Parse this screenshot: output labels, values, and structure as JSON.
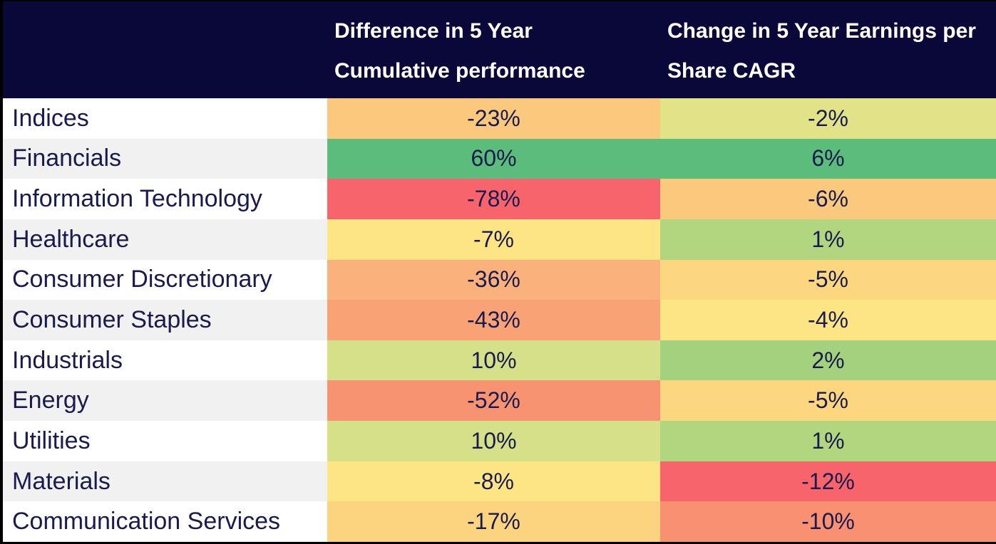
{
  "colors": {
    "header_bg": "#0A0838",
    "header_text": "#FFFFFF",
    "body_text": "#191B4E",
    "row_bg": "#FFFFFF",
    "row_alt_bg": "#F1F1F1",
    "scale_min_red": "#F7646C",
    "scale_mid_yellow": "#FDE586",
    "scale_max_green": "#5CBC7B"
  },
  "table": {
    "columns": [
      {
        "label": "Difference in 5 Year Cumulative performance"
      },
      {
        "label": "Change in 5 Year Earnings per Share CAGR"
      }
    ],
    "rows": [
      {
        "label": "Indices",
        "perf": "-23%",
        "perf_color": "#FBC97D",
        "eps": "-2%",
        "eps_color": "#E2E388"
      },
      {
        "label": "Financials",
        "perf": "60%",
        "perf_color": "#5CBC7B",
        "eps": "6%",
        "eps_color": "#5CBC7B"
      },
      {
        "label": "Information Technology",
        "perf": "-78%",
        "perf_color": "#F7646C",
        "eps": "-6%",
        "eps_color": "#FBC97D"
      },
      {
        "label": "Healthcare",
        "perf": "-7%",
        "perf_color": "#FDE586",
        "eps": "1%",
        "eps_color": "#B2D680"
      },
      {
        "label": "Consumer Discretionary",
        "perf": "-36%",
        "perf_color": "#FAB17B",
        "eps": "-5%",
        "eps_color": "#FDD780"
      },
      {
        "label": "Consumer Staples",
        "perf": "-43%",
        "perf_color": "#F9A276",
        "eps": "-4%",
        "eps_color": "#FDE586"
      },
      {
        "label": "Industrials",
        "perf": "10%",
        "perf_color": "#D6E088",
        "eps": "2%",
        "eps_color": "#A3D17E"
      },
      {
        "label": "Energy",
        "perf": "-52%",
        "perf_color": "#F89371",
        "eps": "-5%",
        "eps_color": "#FDD780"
      },
      {
        "label": "Utilities",
        "perf": "10%",
        "perf_color": "#D6E088",
        "eps": "1%",
        "eps_color": "#B2D680"
      },
      {
        "label": "Materials",
        "perf": "-8%",
        "perf_color": "#FDE586",
        "eps": "-12%",
        "eps_color": "#F7646C"
      },
      {
        "label": "Communication Services",
        "perf": "-17%",
        "perf_color": "#FCD480",
        "eps": "-10%",
        "eps_color": "#F99072"
      }
    ]
  },
  "chart_data": {
    "type": "heatmap",
    "title": "",
    "categories": [
      "Indices",
      "Financials",
      "Information Technology",
      "Healthcare",
      "Consumer Discretionary",
      "Consumer Staples",
      "Industrials",
      "Energy",
      "Utilities",
      "Materials",
      "Communication Services"
    ],
    "series": [
      {
        "name": "Difference in 5 Year Cumulative performance",
        "values": [
          -23,
          60,
          -78,
          -7,
          -36,
          -43,
          10,
          -52,
          10,
          -8,
          -17
        ]
      },
      {
        "name": "Change in 5 Year Earnings per Share CAGR",
        "values": [
          -2,
          6,
          -6,
          1,
          -5,
          -4,
          2,
          -5,
          1,
          -12,
          -10
        ]
      }
    ],
    "units": "%",
    "color_scale": "red-yellow-green per column (min=red #F7646C, mid=yellow #FDE586, max=green #5CBC7B)",
    "layout": "rows are sectors, two value columns, alternating white/grey row-label backgrounds, dark navy header band"
  }
}
